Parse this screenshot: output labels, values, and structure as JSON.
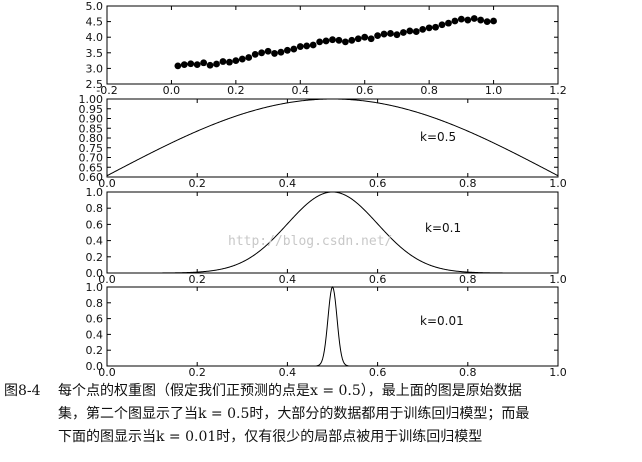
{
  "watermark": "http://blog.csdn.net/",
  "caption": {
    "figure_number": "图8-4",
    "lines": [
      "每个点的权重图（假定我们正预测的点是x = 0.5），最上面的图是原始数据",
      "集，第二个图显示了当k = 0.5时，大部分的数据都用于训练回归模型；而最",
      "下面的图显示当k = 0.01时，仅有很少的局部点被用于训练回归模型"
    ]
  },
  "chart_data": [
    {
      "type": "scatter",
      "xlim": [
        -0.2,
        1.2
      ],
      "ylim": [
        2.5,
        5.0
      ],
      "xticks": [
        "-0.2",
        "0.0",
        "0.2",
        "0.4",
        "0.6",
        "0.8",
        "1.0",
        "1.2"
      ],
      "yticks": [
        "2.5",
        "3.0",
        "3.5",
        "4.0",
        "4.5",
        "5.0"
      ],
      "marker_color": "#000000",
      "points": [
        [
          0.02,
          3.08
        ],
        [
          0.04,
          3.12
        ],
        [
          0.06,
          3.15
        ],
        [
          0.08,
          3.12
        ],
        [
          0.1,
          3.18
        ],
        [
          0.12,
          3.1
        ],
        [
          0.14,
          3.14
        ],
        [
          0.16,
          3.22
        ],
        [
          0.18,
          3.2
        ],
        [
          0.2,
          3.25
        ],
        [
          0.22,
          3.3
        ],
        [
          0.24,
          3.35
        ],
        [
          0.26,
          3.45
        ],
        [
          0.28,
          3.5
        ],
        [
          0.3,
          3.55
        ],
        [
          0.32,
          3.48
        ],
        [
          0.34,
          3.52
        ],
        [
          0.36,
          3.58
        ],
        [
          0.38,
          3.62
        ],
        [
          0.4,
          3.7
        ],
        [
          0.42,
          3.72
        ],
        [
          0.44,
          3.75
        ],
        [
          0.46,
          3.85
        ],
        [
          0.48,
          3.88
        ],
        [
          0.5,
          3.92
        ],
        [
          0.52,
          3.9
        ],
        [
          0.54,
          3.85
        ],
        [
          0.56,
          3.9
        ],
        [
          0.58,
          3.95
        ],
        [
          0.6,
          4.0
        ],
        [
          0.62,
          3.95
        ],
        [
          0.64,
          4.05
        ],
        [
          0.66,
          4.1
        ],
        [
          0.68,
          4.12
        ],
        [
          0.7,
          4.08
        ],
        [
          0.72,
          4.15
        ],
        [
          0.74,
          4.2
        ],
        [
          0.76,
          4.18
        ],
        [
          0.78,
          4.25
        ],
        [
          0.8,
          4.3
        ],
        [
          0.82,
          4.32
        ],
        [
          0.84,
          4.4
        ],
        [
          0.86,
          4.45
        ],
        [
          0.88,
          4.52
        ],
        [
          0.9,
          4.58
        ],
        [
          0.92,
          4.55
        ],
        [
          0.94,
          4.6
        ],
        [
          0.96,
          4.55
        ],
        [
          0.98,
          4.5
        ],
        [
          1.0,
          4.52
        ]
      ]
    },
    {
      "type": "line",
      "annotation": "k=0.5",
      "k": 0.5,
      "center": 0.5,
      "xlim": [
        0.0,
        1.0
      ],
      "ylim": [
        0.6,
        1.0
      ],
      "xticks": [
        "0.0",
        "0.2",
        "0.4",
        "0.6",
        "0.8",
        "1.0"
      ],
      "yticks": [
        "0.60",
        "0.65",
        "0.70",
        "0.75",
        "0.80",
        "0.85",
        "0.90",
        "0.95",
        "1.00"
      ]
    },
    {
      "type": "line",
      "annotation": "k=0.1",
      "k": 0.1,
      "center": 0.5,
      "xlim": [
        0.0,
        1.0
      ],
      "ylim": [
        0.0,
        1.0
      ],
      "xticks": [
        "0.0",
        "0.2",
        "0.4",
        "0.6",
        "0.8",
        "1.0"
      ],
      "yticks": [
        "0.0",
        "0.2",
        "0.4",
        "0.6",
        "0.8",
        "1.0"
      ]
    },
    {
      "type": "line",
      "annotation": "k=0.01",
      "k": 0.01,
      "center": 0.5,
      "xlim": [
        0.0,
        1.0
      ],
      "ylim": [
        0.0,
        1.0
      ],
      "xticks": [
        "0.0",
        "0.2",
        "0.4",
        "0.6",
        "0.8",
        "1.0"
      ],
      "yticks": [
        "0.0",
        "0.2",
        "0.4",
        "0.6",
        "0.8",
        "1.0"
      ]
    }
  ]
}
